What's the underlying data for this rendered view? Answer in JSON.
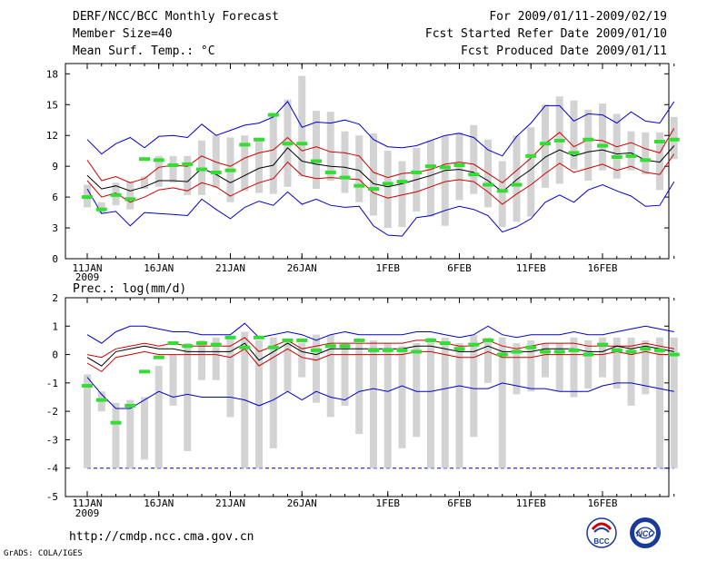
{
  "header": {
    "title": "DERF/NCC/BCC Monthly Forecast",
    "member_size": "Member Size=40",
    "variable_top": "Mean Surf. Temp.: °C",
    "period": "For 2009/01/11-2009/02/19",
    "started": "Fcst Started Refer Date 2009/01/10",
    "produced": "Fcst Produced Date 2009/01/11"
  },
  "footer": {
    "url": "http://cmdp.ncc.cma.gov.cn",
    "grads": "GrADS: COLA/IGES",
    "logo_left_text": "BCC",
    "logo_right_text": "NCC"
  },
  "colors": {
    "envelope": "#0000cc",
    "spread": "#cc0000",
    "mean": "#000000",
    "bar": "#d3d3d3",
    "marker": "#33dd33"
  },
  "chart_data": [
    {
      "type": "line",
      "title": "Mean Surf. Temp.: °C",
      "ylim": [
        0,
        19
      ],
      "yticks": [
        0,
        3,
        6,
        9,
        12,
        15,
        18
      ],
      "xtick_labels": [
        "11JAN",
        "16JAN",
        "21JAN",
        "26JAN",
        "1FEB",
        "6FEB",
        "11FEB",
        "16FEB"
      ],
      "xtick_days": [
        0,
        5,
        10,
        15,
        21,
        26,
        31,
        36
      ],
      "year_label": "2009",
      "max": [
        11.6,
        10.2,
        11.2,
        11.8,
        10.8,
        11.9,
        12.0,
        11.8,
        13.1,
        12.0,
        12.5,
        13.0,
        13.2,
        13.8,
        15.3,
        12.8,
        13.3,
        13.2,
        13.5,
        13.1,
        11.6,
        10.9,
        10.8,
        11.0,
        11.5,
        12.0,
        12.2,
        11.8,
        10.6,
        10.0,
        11.9,
        13.2,
        14.9,
        14.9,
        13.4,
        14.1,
        14.0,
        13.2,
        14.3,
        13.4,
        13.2,
        15.3
      ],
      "p75": [
        9.6,
        7.6,
        8.0,
        7.4,
        7.8,
        8.9,
        9.1,
        9.0,
        10.0,
        9.4,
        9.0,
        9.8,
        10.3,
        10.6,
        11.8,
        10.5,
        10.9,
        10.4,
        10.3,
        10.0,
        8.4,
        7.9,
        8.3,
        8.4,
        8.7,
        9.2,
        9.4,
        9.2,
        8.3,
        7.4,
        8.6,
        9.8,
        11.2,
        12.3,
        10.9,
        11.6,
        11.5,
        10.9,
        11.3,
        10.7,
        10.3,
        12.7
      ],
      "mean": [
        8.1,
        6.8,
        7.1,
        6.6,
        7.0,
        7.6,
        7.6,
        7.5,
        8.8,
        8.2,
        7.4,
        8.1,
        8.8,
        9.1,
        10.8,
        9.5,
        9.2,
        9.0,
        8.9,
        8.6,
        7.3,
        7.0,
        7.3,
        7.7,
        8.1,
        8.6,
        8.7,
        8.4,
        7.6,
        6.5,
        7.7,
        8.7,
        9.9,
        10.6,
        10.0,
        10.4,
        10.6,
        10.2,
        10.3,
        9.6,
        9.4,
        11.0
      ],
      "p25": [
        7.6,
        6.0,
        6.4,
        5.5,
        6.0,
        6.7,
        6.9,
        6.6,
        7.4,
        7.0,
        6.1,
        6.8,
        7.4,
        7.8,
        9.4,
        8.1,
        7.8,
        7.9,
        7.8,
        7.7,
        6.4,
        5.9,
        6.2,
        6.5,
        7.0,
        7.5,
        7.7,
        7.5,
        6.5,
        5.3,
        6.3,
        7.2,
        8.3,
        9.3,
        8.4,
        8.8,
        9.2,
        8.6,
        9.0,
        8.4,
        8.2,
        10.2
      ],
      "min": [
        6.8,
        4.4,
        4.6,
        3.2,
        4.5,
        4.4,
        4.3,
        4.2,
        5.8,
        4.8,
        3.9,
        5.0,
        5.6,
        5.2,
        6.5,
        5.3,
        5.8,
        5.2,
        5.0,
        5.1,
        3.2,
        2.3,
        2.2,
        4.0,
        4.2,
        4.7,
        5.1,
        4.8,
        4.2,
        2.6,
        3.1,
        3.9,
        5.5,
        6.2,
        5.5,
        6.7,
        7.2,
        6.6,
        6.1,
        5.1,
        5.2,
        7.5
      ],
      "bar_top": [
        7.2,
        5.5,
        7.4,
        7.5,
        8.0,
        10.0,
        10.0,
        10.0,
        11.5,
        12.0,
        11.8,
        12.0,
        11.8,
        14.2,
        15.5,
        17.8,
        14.4,
        14.3,
        12.4,
        12.0,
        12.2,
        10.5,
        9.5,
        10.8,
        11.5,
        12.0,
        12.3,
        13.0,
        11.6,
        9.5,
        12.0,
        12.8,
        15.0,
        15.8,
        15.4,
        14.5,
        15.1,
        14.1,
        12.4,
        12.3,
        12.3,
        13.8
      ],
      "bar_bottom": [
        5.0,
        4.4,
        5.2,
        4.8,
        6.8,
        7.0,
        7.4,
        6.2,
        6.2,
        6.9,
        5.5,
        6.6,
        6.4,
        6.3,
        7.0,
        8.0,
        6.8,
        7.6,
        6.4,
        5.5,
        4.2,
        3.0,
        3.1,
        4.6,
        4.1,
        3.2,
        5.7,
        6.3,
        5.0,
        3.1,
        3.6,
        4.1,
        6.9,
        7.3,
        8.7,
        7.6,
        8.6,
        7.8,
        8.6,
        8.2,
        6.7,
        9.7
      ],
      "marker": [
        6.0,
        4.8,
        6.2,
        5.8,
        9.7,
        9.6,
        9.1,
        9.2,
        8.7,
        8.4,
        8.6,
        11.1,
        11.6,
        14.0,
        11.2,
        11.2,
        9.5,
        8.4,
        7.9,
        7.1,
        6.8,
        7.3,
        7.5,
        8.4,
        9.0,
        8.9,
        9.1,
        8.2,
        7.2,
        6.6,
        7.2,
        10.0,
        11.2,
        11.5,
        10.3,
        11.6,
        11.0,
        9.9,
        10.0,
        9.6,
        11.4,
        11.6
      ]
    },
    {
      "type": "line",
      "title": "Prec.: log(mm/d)",
      "ylim": [
        -5,
        2
      ],
      "yticks": [
        -5,
        -4,
        -3,
        -2,
        -1,
        0,
        1,
        2
      ],
      "xtick_labels": [
        "11JAN",
        "16JAN",
        "21JAN",
        "26JAN",
        "1FEB",
        "6FEB",
        "11FEB",
        "16FEB"
      ],
      "xtick_days": [
        0,
        5,
        10,
        15,
        21,
        26,
        31,
        36
      ],
      "year_label": "2009",
      "floor": -4,
      "max": [
        0.7,
        0.4,
        0.8,
        1.0,
        1.0,
        0.9,
        0.8,
        0.8,
        0.7,
        0.7,
        0.7,
        1.1,
        0.6,
        0.7,
        0.8,
        0.7,
        0.5,
        0.7,
        0.8,
        0.7,
        0.7,
        0.7,
        0.7,
        0.8,
        0.8,
        0.7,
        0.6,
        0.7,
        1.0,
        0.7,
        0.6,
        0.7,
        0.7,
        0.7,
        0.8,
        0.7,
        0.7,
        0.8,
        0.9,
        1.0,
        0.9,
        0.8
      ],
      "p75": [
        0.0,
        -0.1,
        0.2,
        0.3,
        0.4,
        0.3,
        0.4,
        0.3,
        0.3,
        0.3,
        0.3,
        0.6,
        0.1,
        0.3,
        0.5,
        0.2,
        0.3,
        0.4,
        0.4,
        0.4,
        0.4,
        0.4,
        0.4,
        0.5,
        0.5,
        0.4,
        0.3,
        0.3,
        0.5,
        0.3,
        0.2,
        0.3,
        0.4,
        0.4,
        0.4,
        0.3,
        0.3,
        0.3,
        0.3,
        0.4,
        0.3,
        0.2
      ],
      "mean": [
        -0.1,
        -0.4,
        0.1,
        0.2,
        0.3,
        0.2,
        0.2,
        0.1,
        0.1,
        0.1,
        0.1,
        0.4,
        -0.2,
        0.1,
        0.4,
        0.1,
        0.0,
        0.2,
        0.2,
        0.2,
        0.2,
        0.2,
        0.2,
        0.3,
        0.3,
        0.2,
        0.1,
        0.1,
        0.3,
        0.1,
        0.1,
        0.1,
        0.2,
        0.2,
        0.2,
        0.1,
        0.1,
        0.3,
        0.2,
        0.3,
        0.2,
        0.1
      ],
      "p25": [
        -0.3,
        -0.6,
        -0.1,
        0.0,
        0.1,
        0.0,
        0.0,
        0.0,
        0.0,
        0.0,
        -0.1,
        0.2,
        -0.4,
        -0.1,
        0.2,
        -0.1,
        -0.2,
        0.0,
        0.0,
        0.0,
        0.0,
        0.0,
        0.0,
        0.1,
        0.1,
        0.0,
        -0.1,
        -0.1,
        0.1,
        -0.1,
        -0.1,
        -0.1,
        0.0,
        0.0,
        0.0,
        0.0,
        0.0,
        0.1,
        0.0,
        0.1,
        0.0,
        0.0
      ],
      "min": [
        -0.8,
        -1.4,
        -1.9,
        -1.9,
        -1.6,
        -1.3,
        -1.5,
        -1.4,
        -1.5,
        -1.5,
        -1.5,
        -1.6,
        -1.8,
        -1.6,
        -1.3,
        -1.6,
        -1.3,
        -1.5,
        -1.6,
        -1.3,
        -1.2,
        -1.3,
        -1.1,
        -1.3,
        -1.3,
        -1.2,
        -1.1,
        -1.2,
        -1.2,
        -1.0,
        -1.1,
        -1.2,
        -1.2,
        -1.3,
        -1.3,
        -1.3,
        -1.1,
        -1.0,
        -1.0,
        -1.1,
        -1.2,
        -1.3
      ],
      "bar_top": [
        -0.7,
        -1.3,
        -1.7,
        -1.6,
        -1.5,
        -0.4,
        0.0,
        0.4,
        0.5,
        0.6,
        0.6,
        0.8,
        0.5,
        0.6,
        0.5,
        0.4,
        0.7,
        0.7,
        0.4,
        0.4,
        0.5,
        0.4,
        0.3,
        0.4,
        0.6,
        0.6,
        0.4,
        0.7,
        0.6,
        0.6,
        0.4,
        0.5,
        0.4,
        0.4,
        0.6,
        0.5,
        0.6,
        0.6,
        0.6,
        0.5,
        0.6,
        0.6
      ],
      "bar_bottom": [
        -4.0,
        -2.0,
        -4.0,
        -4.0,
        -3.7,
        -4.0,
        -1.8,
        -3.4,
        -0.9,
        -0.9,
        -2.2,
        -4.0,
        -4.0,
        -3.3,
        -1.3,
        -0.8,
        -1.7,
        -2.2,
        -1.8,
        -2.8,
        -4.0,
        -4.0,
        -3.3,
        -2.9,
        -4.0,
        -4.0,
        -4.0,
        -2.9,
        -1.0,
        -4.0,
        -1.4,
        -1.3,
        -0.8,
        -1.3,
        -1.5,
        -1.2,
        -0.8,
        -1.2,
        -1.8,
        -1.4,
        -4.0,
        -4.0
      ],
      "marker": [
        -1.1,
        -1.6,
        -2.4,
        -1.8,
        -0.6,
        -0.1,
        0.4,
        0.3,
        0.4,
        0.35,
        0.6,
        0.25,
        0.6,
        0.25,
        0.5,
        0.5,
        0.15,
        0.3,
        0.3,
        0.5,
        0.15,
        0.15,
        0.15,
        0.1,
        0.5,
        0.4,
        0.2,
        0.35,
        0.5,
        0.0,
        0.1,
        0.25,
        0.1,
        0.1,
        0.15,
        0.0,
        0.35,
        0.15,
        0.1,
        0.2,
        0.15,
        0.0
      ]
    }
  ]
}
